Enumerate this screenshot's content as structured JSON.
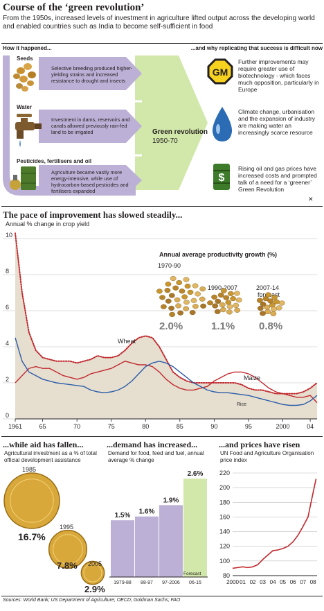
{
  "header": {
    "title": "Course of the ‘green revolution’",
    "deck": "From the 1950s, increased levels of investment in agriculture lifted output across the developing world and enabled countries such as India to become self-sufficient in food"
  },
  "top": {
    "left_heading": "How it happened...",
    "right_heading": "...and why replicating that success is difficult now",
    "causes": [
      {
        "label": "Seeds",
        "text": "Selective breeding produced higher-yielding strains and increased resistance to drought and insects"
      },
      {
        "label": "Water",
        "text": "Investment in dams, reservoirs and canals allowed previously rain-fed land to be irrigated"
      },
      {
        "label": "Pesticides, fertilisers and oil",
        "text": "Agriculture became vastly more energy-intensive, while use of hydrocarbon-based pesticides and fertilisers expanded"
      }
    ],
    "centre": {
      "label": "Green revolution",
      "years": "1950-70"
    },
    "obstacles": [
      {
        "text": "Further improvements may require greater use of biotechnology - which faces much opposition, particularly in Europe",
        "icon": "gm-sign-icon",
        "icon_label": "GM"
      },
      {
        "text": "Climate change, urbanisation and the expansion of industry are making water an increasingly scarce resource",
        "icon": "water-drop-icon"
      },
      {
        "text": "Rising oil and gas prices have increased costs and prompted talk of a need for a ‘greener’ Green Revolution",
        "icon": "oil-barrel-icon",
        "icon_label": "$"
      }
    ],
    "cross_mark": "✕"
  },
  "colors": {
    "purple": "#bcb0d6",
    "green": "#d2e8aa",
    "red": "#c0282d",
    "blue": "#2b5ca8",
    "beige": "#e6dfd0"
  },
  "yield_section": {
    "title": "The pace of improvement has slowed steadily...",
    "subtitle": "Annual % change in crop yield",
    "inset_title": "Annual average productivity growth (%)",
    "inset": [
      {
        "period": "1970-90",
        "value": "2.0%"
      },
      {
        "period": "1990-2007",
        "value": "1.1%"
      },
      {
        "period": "2007-14",
        "period2": "forecast",
        "value": "0.8%"
      }
    ]
  },
  "aid_section": {
    "title": "...while aid has fallen...",
    "subtitle": "Agricultural investment as a % of total official development assistance",
    "items": [
      {
        "year": "1985",
        "value": "16.7%",
        "v": 16.7
      },
      {
        "year": "1995",
        "value": "7.8%",
        "v": 7.8
      },
      {
        "year": "2005",
        "value": "2.9%",
        "v": 2.9
      }
    ]
  },
  "demand_section": {
    "title": "...demand has increased...",
    "subtitle": "Demand for food, feed and fuel, annual average % change",
    "forecast_label": "Forecast"
  },
  "price_section": {
    "title": "...and prices have risen",
    "subtitle": "UN Food and Agriculture Organisation price index"
  },
  "footer": {
    "sources": "Sources: World Bank; US Department of Agriculture; OECD; Goldman Sachs; FAO"
  },
  "chart_data": [
    {
      "type": "line",
      "title": "The pace of improvement has slowed steadily...",
      "ylabel": "Annual % change in crop yield",
      "xlim": [
        1961,
        2005
      ],
      "ylim": [
        0,
        10
      ],
      "yticks": [
        0,
        2,
        4,
        6,
        8,
        10
      ],
      "xtick_labels": [
        {
          "x": 1961,
          "label": "1961"
        },
        {
          "x": 1965,
          "label": "65"
        },
        {
          "x": 1970,
          "label": "70"
        },
        {
          "x": 1975,
          "label": "75"
        },
        {
          "x": 1980,
          "label": "80"
        },
        {
          "x": 1985,
          "label": "85"
        },
        {
          "x": 1990,
          "label": "90"
        },
        {
          "x": 1995,
          "label": "95"
        },
        {
          "x": 2000,
          "label": "2000"
        },
        {
          "x": 2004,
          "label": "04"
        }
      ],
      "series": [
        {
          "name": "Wheat",
          "style": "dotted",
          "color": "#c0282d",
          "x": [
            1961,
            1962,
            1963,
            1964,
            1965,
            1966,
            1967,
            1968,
            1969,
            1970,
            1971,
            1972,
            1973,
            1974,
            1975,
            1976,
            1977,
            1978,
            1979,
            1980,
            1981,
            1982,
            1983,
            1984,
            1985,
            1986,
            1987,
            1988,
            1989,
            1990,
            1991,
            1992,
            1993,
            1994,
            1995,
            1996,
            1997,
            1998,
            1999,
            2000,
            2001,
            2002,
            2003,
            2004,
            2005
          ],
          "values": [
            10.3,
            7.0,
            4.8,
            3.8,
            3.4,
            3.3,
            3.2,
            3.2,
            3.2,
            3.1,
            3.2,
            3.3,
            3.5,
            3.4,
            3.4,
            3.5,
            3.8,
            4.2,
            4.5,
            4.6,
            4.5,
            4.0,
            3.3,
            2.6,
            2.3,
            2.1,
            2.0,
            2.0,
            2.0,
            2.0,
            2.0,
            2.0,
            2.0,
            1.9,
            1.7,
            1.6,
            1.6,
            1.5,
            1.4,
            1.4,
            1.4,
            1.4,
            1.5,
            1.7,
            2.0
          ]
        },
        {
          "name": "Maize",
          "style": "solid",
          "color": "#c0282d",
          "x": [
            1961,
            1962,
            1963,
            1964,
            1965,
            1966,
            1967,
            1968,
            1969,
            1970,
            1971,
            1972,
            1973,
            1974,
            1975,
            1976,
            1977,
            1978,
            1979,
            1980,
            1981,
            1982,
            1983,
            1984,
            1985,
            1986,
            1987,
            1988,
            1989,
            1990,
            1991,
            1992,
            1993,
            1994,
            1995,
            1996,
            1997,
            1998,
            1999,
            2000,
            2001,
            2002,
            2003,
            2004,
            2005
          ],
          "values": [
            2.0,
            2.4,
            2.8,
            2.9,
            2.8,
            2.8,
            2.6,
            2.4,
            2.3,
            2.2,
            2.3,
            2.5,
            2.6,
            2.7,
            2.8,
            3.0,
            3.2,
            3.1,
            3.0,
            3.0,
            2.9,
            2.6,
            2.2,
            1.9,
            1.7,
            1.6,
            1.6,
            1.7,
            1.8,
            2.1,
            2.3,
            2.5,
            2.6,
            2.6,
            2.5,
            2.3,
            2.0,
            1.7,
            1.5,
            1.4,
            1.3,
            1.2,
            1.2,
            1.3,
            0.9
          ]
        },
        {
          "name": "Rice",
          "style": "solid",
          "color": "#2b5ca8",
          "x": [
            1961,
            1962,
            1963,
            1964,
            1965,
            1966,
            1967,
            1968,
            1969,
            1970,
            1971,
            1972,
            1973,
            1974,
            1975,
            1976,
            1977,
            1978,
            1979,
            1980,
            1981,
            1982,
            1983,
            1984,
            1985,
            1986,
            1987,
            1988,
            1989,
            1990,
            1991,
            1992,
            1993,
            1994,
            1995,
            1996,
            1997,
            1998,
            1999,
            2000,
            2001,
            2002,
            2003,
            2004,
            2005
          ],
          "values": [
            4.5,
            3.2,
            2.6,
            2.4,
            2.2,
            2.1,
            2.0,
            1.95,
            1.9,
            1.85,
            1.8,
            1.6,
            1.5,
            1.45,
            1.5,
            1.6,
            1.8,
            2.1,
            2.5,
            2.9,
            3.1,
            3.2,
            3.1,
            2.9,
            2.6,
            2.3,
            2.0,
            1.8,
            1.6,
            1.5,
            1.45,
            1.45,
            1.4,
            1.35,
            1.3,
            1.2,
            1.1,
            1.0,
            0.9,
            0.8,
            0.75,
            0.75,
            0.8,
            1.0,
            1.3
          ]
        }
      ]
    },
    {
      "type": "bar",
      "title": "Annual average productivity growth (%)",
      "categories": [
        "1970-90",
        "1990-2007",
        "2007-14 forecast"
      ],
      "values": [
        2.0,
        1.1,
        0.8
      ]
    },
    {
      "type": "bar",
      "title": "...while aid has fallen...",
      "ylabel": "Agricultural investment as a % of total official development assistance",
      "categories": [
        "1985",
        "1995",
        "2005"
      ],
      "values": [
        16.7,
        7.8,
        2.9
      ]
    },
    {
      "type": "bar",
      "title": "...demand has increased...",
      "ylabel": "Demand for food, feed and fuel, annual average % change",
      "categories": [
        "1979-88",
        "88-97",
        "97-2006",
        "06-15"
      ],
      "values": [
        1.5,
        1.6,
        1.9,
        2.6
      ],
      "value_labels": [
        "1.5%",
        "1.6%",
        "1.9%",
        "2.6%"
      ],
      "forecast": [
        false,
        false,
        false,
        true
      ],
      "ylim": [
        0,
        2.75
      ]
    },
    {
      "type": "line",
      "title": "...and prices have risen",
      "ylabel": "UN Food and Agriculture Organisation price index",
      "ylim": [
        80,
        220
      ],
      "yticks": [
        80,
        100,
        120,
        140,
        160,
        180,
        200,
        220
      ],
      "categories": [
        "2000",
        "01",
        "02",
        "03",
        "04",
        "05",
        "06",
        "07",
        "08"
      ],
      "x": [
        2000,
        2000.5,
        2001,
        2001.5,
        2002,
        2002.5,
        2003,
        2003.5,
        2004,
        2004.5,
        2005,
        2005.5,
        2006,
        2006.5,
        2007,
        2007.5,
        2008,
        2008.3
      ],
      "values": [
        90,
        91,
        92,
        91,
        92,
        95,
        102,
        108,
        114,
        115,
        117,
        120,
        126,
        135,
        147,
        160,
        193,
        212
      ]
    }
  ]
}
